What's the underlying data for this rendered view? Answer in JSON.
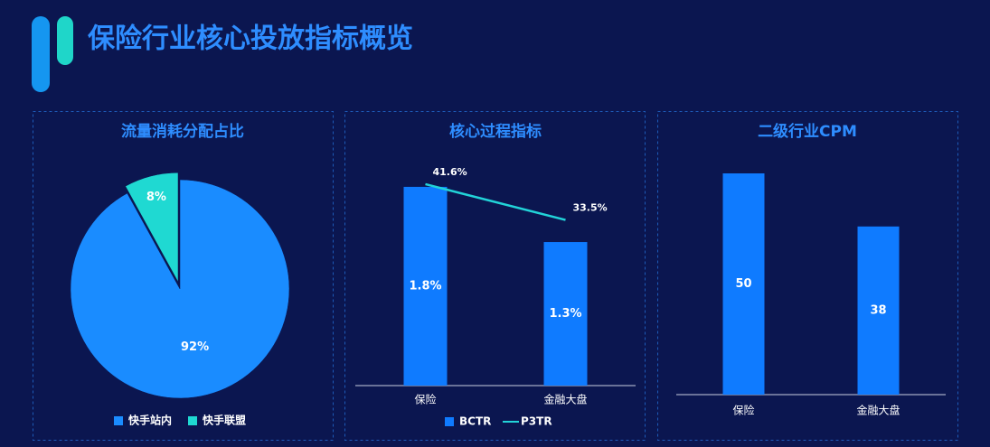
{
  "header": {
    "title": "保险行业核心投放指标概览"
  },
  "chart_data": [
    {
      "type": "pie",
      "title": "流量消耗分配占比",
      "categories": [
        "快手站内",
        "快手联盟"
      ],
      "values": [
        92,
        8
      ],
      "value_labels": [
        "92%",
        "8%"
      ],
      "colors": [
        "#1a8cff",
        "#1fd9d2"
      ],
      "legend": "bottom"
    },
    {
      "type": "bar",
      "title": "核心过程指标",
      "categories": [
        "保险",
        "金融大盘"
      ],
      "ylim": [
        0,
        2.2
      ],
      "y2lim": [
        -4,
        51
      ],
      "legend": "bottom",
      "series": [
        {
          "name": "BCTR",
          "color": "#0f7bff",
          "values": [
            1.8,
            1.3
          ],
          "value_labels": [
            "1.8%",
            "1.3%"
          ]
        },
        {
          "name": "P3TR",
          "type": "line",
          "axis": "y2",
          "color": "#22d3d8",
          "values": [
            41.6,
            33.5
          ],
          "value_labels": [
            "41.6%",
            "33.5%"
          ]
        }
      ]
    },
    {
      "type": "bar",
      "title": "二级行业CPM",
      "categories": [
        "保险",
        "金融大盘"
      ],
      "values": [
        50,
        38
      ],
      "color": "#0f7bff",
      "ylim": [
        0,
        60
      ]
    }
  ]
}
